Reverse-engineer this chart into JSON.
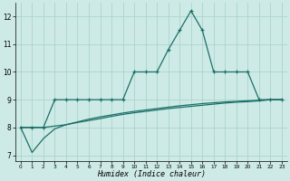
{
  "xlabel": "Humidex (Indice chaleur)",
  "background_color": "#ceeae6",
  "grid_color": "#aad4ce",
  "line_color": "#1a7068",
  "x_values": [
    0,
    1,
    2,
    3,
    4,
    5,
    6,
    7,
    8,
    9,
    10,
    11,
    12,
    13,
    14,
    15,
    16,
    17,
    18,
    19,
    20,
    21,
    22,
    23
  ],
  "y_main": [
    8.0,
    8.0,
    8.0,
    9.0,
    9.0,
    9.0,
    9.0,
    9.0,
    9.0,
    9.0,
    10.0,
    10.0,
    10.0,
    10.8,
    11.5,
    12.2,
    11.5,
    10.0,
    10.0,
    10.0,
    10.0,
    9.0,
    9.0,
    9.0
  ],
  "y_diag1": [
    8.0,
    7.1,
    7.6,
    7.95,
    8.1,
    8.2,
    8.3,
    8.38,
    8.45,
    8.52,
    8.58,
    8.63,
    8.68,
    8.73,
    8.78,
    8.82,
    8.86,
    8.89,
    8.92,
    8.94,
    8.96,
    8.98,
    9.0,
    9.0
  ],
  "y_diag2": [
    8.0,
    8.0,
    8.0,
    8.05,
    8.1,
    8.18,
    8.25,
    8.32,
    8.4,
    8.47,
    8.53,
    8.58,
    8.63,
    8.68,
    8.72,
    8.76,
    8.8,
    8.84,
    8.88,
    8.91,
    8.93,
    8.96,
    9.0,
    9.0
  ],
  "ylim": [
    6.8,
    12.5
  ],
  "xlim": [
    -0.5,
    23.5
  ],
  "yticks": [
    7,
    8,
    9,
    10,
    11,
    12
  ],
  "xticks": [
    0,
    1,
    2,
    3,
    4,
    5,
    6,
    7,
    8,
    9,
    10,
    11,
    12,
    13,
    14,
    15,
    16,
    17,
    18,
    19,
    20,
    21,
    22,
    23
  ],
  "figsize": [
    3.2,
    2.0
  ],
  "dpi": 100
}
